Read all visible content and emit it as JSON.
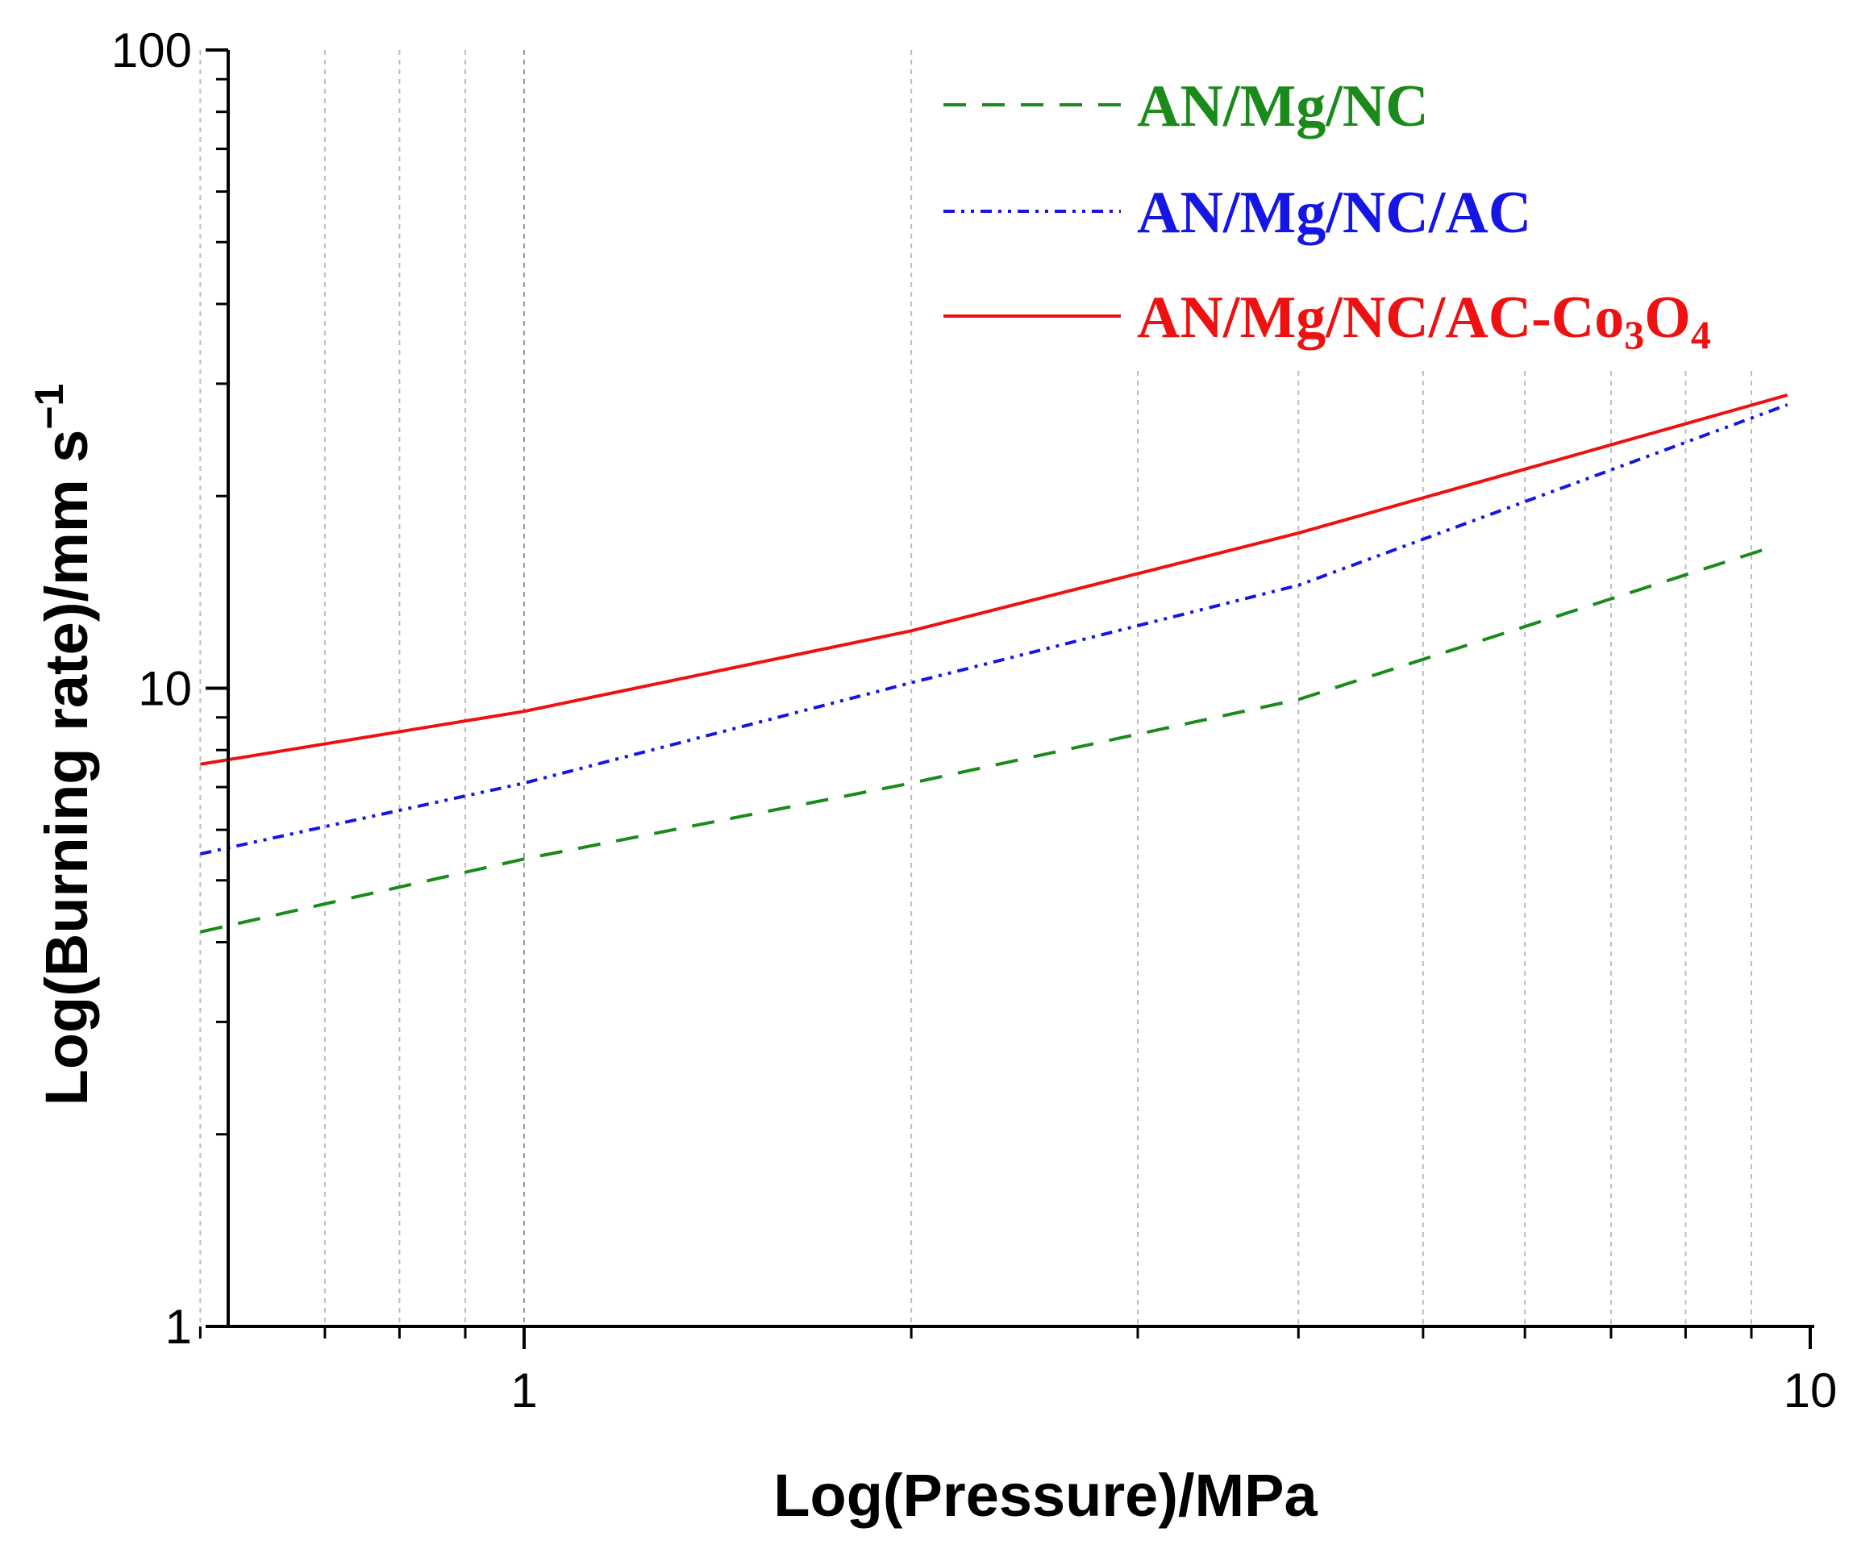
{
  "chart_data": {
    "type": "line",
    "xscale": "log",
    "yscale": "log",
    "xlim": [
      0.55,
      10
    ],
    "ylim": [
      1,
      100
    ],
    "xlabel": "Log(Pressure)/MPa",
    "ylabel_main": "Log(Burning rate)/mm s",
    "ylabel_sup": "−1",
    "x_ticks": [
      {
        "value": 1,
        "label": "1"
      },
      {
        "value": 10,
        "label": "10"
      }
    ],
    "y_ticks": [
      {
        "value": 1,
        "label": "1"
      },
      {
        "value": 10,
        "label": "10"
      },
      {
        "value": 100,
        "label": "100"
      }
    ],
    "x_gridlines": [
      0.56,
      0.7,
      0.8,
      0.9,
      1,
      2,
      3,
      4,
      5,
      6,
      7,
      8,
      9
    ],
    "legend_position": "top-right",
    "series": [
      {
        "name": "AN/Mg/NC",
        "label_parts": [
          {
            "text": "AN/Mg/NC"
          }
        ],
        "color": "#1a8a1a",
        "dash": "28,20",
        "x": [
          0.56,
          1,
          2,
          4,
          9.3
        ],
        "y": [
          4.15,
          5.4,
          7.1,
          9.6,
          16.6
        ]
      },
      {
        "name": "AN/Mg/NC/AC",
        "label_parts": [
          {
            "text": "AN/Mg/NC/AC"
          }
        ],
        "color": "#1515e6",
        "dash": "14,8,4,8,4,8",
        "x": [
          0.56,
          1,
          2,
          4,
          9.6
        ],
        "y": [
          5.5,
          7.1,
          10.2,
          14.5,
          27.8
        ]
      },
      {
        "name": "AN/Mg/NC/AC-Co3O4",
        "label_parts": [
          {
            "text": "AN/Mg/NC/AC-Co"
          },
          {
            "text": "3",
            "sub": true
          },
          {
            "text": "O"
          },
          {
            "text": "4",
            "sub": true
          }
        ],
        "color": "#ee1111",
        "dash": "",
        "x": [
          0.56,
          1,
          2,
          4,
          9.6
        ],
        "y": [
          7.6,
          9.2,
          12.3,
          17.5,
          28.8
        ]
      }
    ]
  }
}
